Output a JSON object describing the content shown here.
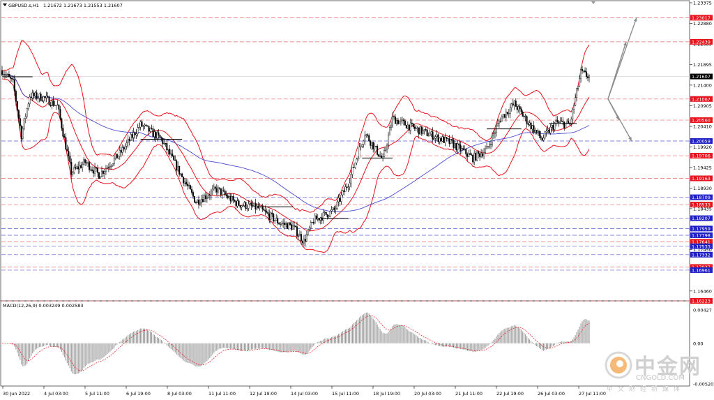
{
  "header": {
    "symbol": "GBPUSD.s,H1",
    "ohlc": "1.21672 1.21673 1.21553 1.21607"
  },
  "macd": {
    "label": "MACD(12,26,9) 0.003249 0.002583",
    "ticks": [
      "0.00427",
      "0.00",
      "-0.005202"
    ]
  },
  "watermark": {
    "brand_cn": "中金网",
    "brand_en": "CNGOLD.COM",
    "sub_cn": "中文财经新媒体"
  },
  "colors": {
    "bollinger": "#e8141c",
    "ma_blue": "#4a4ad6",
    "candle": "#000000",
    "tag_red": "#e8141c",
    "tag_blue": "#2020c8",
    "tag_black": "#000000",
    "hist": "#9a9a9a",
    "signal": "#e8141c",
    "forecast_arrow": "#8c8c8c"
  },
  "chart_data": {
    "type": "candlestick",
    "title": "GBPUSD.s,H1",
    "ylim": [
      1.16223,
      1.23375
    ],
    "price_ticks": [
      "1.23375",
      "1.22880",
      "1.22385",
      "1.21895",
      "1.21400",
      "1.20905",
      "1.20410",
      "1.19920",
      "1.19425",
      "1.18930",
      "1.18435",
      "1.17945",
      "1.17450",
      "1.16960",
      "1.16460"
    ],
    "x_labels": [
      "30 Jun 2022",
      "4 Jul 03:00",
      "5 Jul 11:00",
      "6 Jul 19:00",
      "8 Jul 03:00",
      "11 Jul 11:00",
      "12 Jul 19:00",
      "14 Jul 03:00",
      "15 Jul 11:00",
      "18 Jul 19:00",
      "20 Jul 03:00",
      "21 Jul 11:00",
      "22 Jul 19:00",
      "26 Jul 03:00",
      "27 Jul 11:00"
    ],
    "levels": [
      {
        "value": 1.23017,
        "style": "red"
      },
      {
        "value": 1.22439,
        "style": "red"
      },
      {
        "value": 1.21607,
        "style": "black"
      },
      {
        "value": 1.21067,
        "style": "red"
      },
      {
        "value": 1.2056,
        "style": "red"
      },
      {
        "value": 1.20059,
        "style": "blue"
      },
      {
        "value": 1.19706,
        "style": "red"
      },
      {
        "value": 1.19163,
        "style": "red"
      },
      {
        "value": 1.18709,
        "style": "blue"
      },
      {
        "value": 1.18533,
        "style": "red"
      },
      {
        "value": 1.18207,
        "style": "blue"
      },
      {
        "value": 1.17959,
        "style": "blue"
      },
      {
        "value": 1.17798,
        "style": "blue"
      },
      {
        "value": 1.17641,
        "style": "red"
      },
      {
        "value": 1.17533,
        "style": "blue"
      },
      {
        "value": 1.17332,
        "style": "blue"
      },
      {
        "value": 1.17037,
        "style": "red"
      },
      {
        "value": 1.16961,
        "style": "blue"
      },
      {
        "value": 1.16223,
        "style": "red"
      }
    ],
    "last_price": 1.21607,
    "macd_value": 0.003249,
    "signal_value": 0.002583,
    "macd_range": [
      -0.005202,
      0.00427
    ]
  }
}
